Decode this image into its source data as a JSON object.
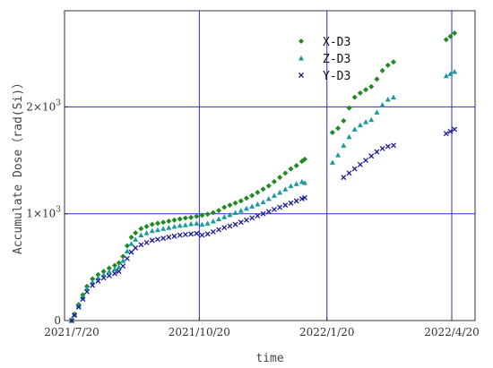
{
  "chart_data": {
    "type": "scatter",
    "title": "",
    "xlabel": "time",
    "ylabel": "Accumulate Dose（rad(Si)）",
    "x_range": [
      "2021-07-20",
      "2022-04-20"
    ],
    "ylim": [
      0,
      2900
    ],
    "x_ticks": [
      {
        "date": "2021-07-20",
        "label": "2021/7/20"
      },
      {
        "date": "2021-10-20",
        "label": "2021/10/20"
      },
      {
        "date": "2022-01-20",
        "label": "2022/1/20"
      },
      {
        "date": "2022-04-20",
        "label": "2022/4/20"
      }
    ],
    "y_ticks": [
      {
        "value": 0,
        "label": "0",
        "exp": ""
      },
      {
        "value": 1000,
        "label": "1×10",
        "exp": "3"
      },
      {
        "value": 2000,
        "label": "2×10",
        "exp": "3"
      }
    ],
    "grid": true,
    "grid_color": "#2b2bd6",
    "legend_position": "top-right",
    "series": [
      {
        "name": "X-D3",
        "marker": "diamond",
        "color": "#1f8a1f",
        "points": [
          [
            "2021-07-20",
            0
          ],
          [
            "2021-07-22",
            60
          ],
          [
            "2021-07-25",
            150
          ],
          [
            "2021-07-28",
            240
          ],
          [
            "2021-07-31",
            320
          ],
          [
            "2021-08-04",
            390
          ],
          [
            "2021-08-08",
            430
          ],
          [
            "2021-08-12",
            460
          ],
          [
            "2021-08-16",
            490
          ],
          [
            "2021-08-20",
            515
          ],
          [
            "2021-08-23",
            540
          ],
          [
            "2021-08-26",
            600
          ],
          [
            "2021-08-29",
            700
          ],
          [
            "2021-09-01",
            780
          ],
          [
            "2021-09-04",
            820
          ],
          [
            "2021-09-08",
            860
          ],
          [
            "2021-09-12",
            880
          ],
          [
            "2021-09-16",
            900
          ],
          [
            "2021-09-20",
            910
          ],
          [
            "2021-09-24",
            920
          ],
          [
            "2021-09-28",
            930
          ],
          [
            "2021-10-02",
            940
          ],
          [
            "2021-10-06",
            950
          ],
          [
            "2021-10-10",
            960
          ],
          [
            "2021-10-14",
            965
          ],
          [
            "2021-10-18",
            975
          ],
          [
            "2021-10-22",
            985
          ],
          [
            "2021-10-26",
            995
          ],
          [
            "2021-10-30",
            1010
          ],
          [
            "2021-11-03",
            1030
          ],
          [
            "2021-11-07",
            1060
          ],
          [
            "2021-11-11",
            1080
          ],
          [
            "2021-11-15",
            1100
          ],
          [
            "2021-11-19",
            1120
          ],
          [
            "2021-11-23",
            1145
          ],
          [
            "2021-11-27",
            1170
          ],
          [
            "2021-12-01",
            1200
          ],
          [
            "2021-12-05",
            1230
          ],
          [
            "2021-12-09",
            1260
          ],
          [
            "2021-12-13",
            1300
          ],
          [
            "2021-12-17",
            1340
          ],
          [
            "2021-12-21",
            1380
          ],
          [
            "2021-12-25",
            1420
          ],
          [
            "2021-12-29",
            1450
          ],
          [
            "2022-01-02",
            1490
          ],
          [
            "2022-01-04",
            1510
          ],
          [
            "2022-01-24",
            1760
          ],
          [
            "2022-01-28",
            1800
          ],
          [
            "2022-02-01",
            1870
          ],
          [
            "2022-02-05",
            1990
          ],
          [
            "2022-02-09",
            2090
          ],
          [
            "2022-02-13",
            2130
          ],
          [
            "2022-02-17",
            2160
          ],
          [
            "2022-02-21",
            2190
          ],
          [
            "2022-02-25",
            2260
          ],
          [
            "2022-03-01",
            2340
          ],
          [
            "2022-03-05",
            2390
          ],
          [
            "2022-03-09",
            2420
          ],
          [
            "2022-04-16",
            2630
          ],
          [
            "2022-04-19",
            2660
          ],
          [
            "2022-04-22",
            2690
          ]
        ]
      },
      {
        "name": "Z-D3",
        "marker": "triangle",
        "color": "#1a9a9a",
        "points": [
          [
            "2021-07-20",
            0
          ],
          [
            "2021-07-22",
            55
          ],
          [
            "2021-07-25",
            140
          ],
          [
            "2021-07-28",
            220
          ],
          [
            "2021-07-31",
            300
          ],
          [
            "2021-08-04",
            360
          ],
          [
            "2021-08-08",
            400
          ],
          [
            "2021-08-12",
            430
          ],
          [
            "2021-08-16",
            460
          ],
          [
            "2021-08-20",
            480
          ],
          [
            "2021-08-23",
            500
          ],
          [
            "2021-08-26",
            560
          ],
          [
            "2021-08-29",
            650
          ],
          [
            "2021-09-01",
            720
          ],
          [
            "2021-09-04",
            760
          ],
          [
            "2021-09-08",
            800
          ],
          [
            "2021-09-12",
            820
          ],
          [
            "2021-09-16",
            840
          ],
          [
            "2021-09-20",
            850
          ],
          [
            "2021-09-24",
            860
          ],
          [
            "2021-09-28",
            870
          ],
          [
            "2021-10-02",
            880
          ],
          [
            "2021-10-06",
            890
          ],
          [
            "2021-10-10",
            895
          ],
          [
            "2021-10-14",
            905
          ],
          [
            "2021-10-18",
            910
          ],
          [
            "2021-10-22",
            900
          ],
          [
            "2021-10-26",
            910
          ],
          [
            "2021-10-30",
            930
          ],
          [
            "2021-11-03",
            950
          ],
          [
            "2021-11-07",
            970
          ],
          [
            "2021-11-11",
            990
          ],
          [
            "2021-11-15",
            1010
          ],
          [
            "2021-11-19",
            1030
          ],
          [
            "2021-11-23",
            1050
          ],
          [
            "2021-11-27",
            1070
          ],
          [
            "2021-12-01",
            1090
          ],
          [
            "2021-12-05",
            1110
          ],
          [
            "2021-12-09",
            1140
          ],
          [
            "2021-12-13",
            1170
          ],
          [
            "2021-12-17",
            1200
          ],
          [
            "2021-12-21",
            1230
          ],
          [
            "2021-12-25",
            1260
          ],
          [
            "2021-12-29",
            1280
          ],
          [
            "2022-01-02",
            1300
          ],
          [
            "2022-01-04",
            1290
          ],
          [
            "2022-01-24",
            1480
          ],
          [
            "2022-01-28",
            1550
          ],
          [
            "2022-02-01",
            1640
          ],
          [
            "2022-02-05",
            1720
          ],
          [
            "2022-02-09",
            1790
          ],
          [
            "2022-02-13",
            1830
          ],
          [
            "2022-02-17",
            1860
          ],
          [
            "2022-02-21",
            1880
          ],
          [
            "2022-02-25",
            1950
          ],
          [
            "2022-03-01",
            2020
          ],
          [
            "2022-03-05",
            2070
          ],
          [
            "2022-03-09",
            2090
          ],
          [
            "2022-04-16",
            2290
          ],
          [
            "2022-04-19",
            2310
          ],
          [
            "2022-04-22",
            2330
          ]
        ]
      },
      {
        "name": "Y-D3",
        "marker": "x",
        "color": "#1a1a99",
        "points": [
          [
            "2021-07-20",
            0
          ],
          [
            "2021-07-22",
            50
          ],
          [
            "2021-07-25",
            125
          ],
          [
            "2021-07-28",
            200
          ],
          [
            "2021-07-31",
            270
          ],
          [
            "2021-08-04",
            330
          ],
          [
            "2021-08-08",
            370
          ],
          [
            "2021-08-12",
            400
          ],
          [
            "2021-08-16",
            420
          ],
          [
            "2021-08-20",
            440
          ],
          [
            "2021-08-23",
            460
          ],
          [
            "2021-08-26",
            510
          ],
          [
            "2021-08-29",
            580
          ],
          [
            "2021-09-01",
            640
          ],
          [
            "2021-09-04",
            680
          ],
          [
            "2021-09-08",
            710
          ],
          [
            "2021-09-12",
            730
          ],
          [
            "2021-09-16",
            750
          ],
          [
            "2021-09-20",
            760
          ],
          [
            "2021-09-24",
            770
          ],
          [
            "2021-09-28",
            780
          ],
          [
            "2021-10-02",
            790
          ],
          [
            "2021-10-06",
            800
          ],
          [
            "2021-10-10",
            805
          ],
          [
            "2021-10-14",
            810
          ],
          [
            "2021-10-18",
            815
          ],
          [
            "2021-10-22",
            800
          ],
          [
            "2021-10-26",
            810
          ],
          [
            "2021-10-30",
            830
          ],
          [
            "2021-11-03",
            850
          ],
          [
            "2021-11-07",
            870
          ],
          [
            "2021-11-11",
            885
          ],
          [
            "2021-11-15",
            900
          ],
          [
            "2021-11-19",
            920
          ],
          [
            "2021-11-23",
            940
          ],
          [
            "2021-11-27",
            960
          ],
          [
            "2021-12-01",
            980
          ],
          [
            "2021-12-05",
            1000
          ],
          [
            "2021-12-09",
            1020
          ],
          [
            "2021-12-13",
            1040
          ],
          [
            "2021-12-17",
            1060
          ],
          [
            "2021-12-21",
            1080
          ],
          [
            "2021-12-25",
            1100
          ],
          [
            "2021-12-29",
            1120
          ],
          [
            "2022-01-02",
            1140
          ],
          [
            "2022-01-04",
            1150
          ],
          [
            "2022-02-01",
            1340
          ],
          [
            "2022-02-05",
            1380
          ],
          [
            "2022-02-09",
            1420
          ],
          [
            "2022-02-13",
            1460
          ],
          [
            "2022-02-17",
            1500
          ],
          [
            "2022-02-21",
            1540
          ],
          [
            "2022-02-25",
            1580
          ],
          [
            "2022-03-01",
            1610
          ],
          [
            "2022-03-05",
            1630
          ],
          [
            "2022-03-09",
            1640
          ],
          [
            "2022-04-16",
            1750
          ],
          [
            "2022-04-19",
            1770
          ],
          [
            "2022-04-22",
            1790
          ]
        ]
      }
    ]
  }
}
